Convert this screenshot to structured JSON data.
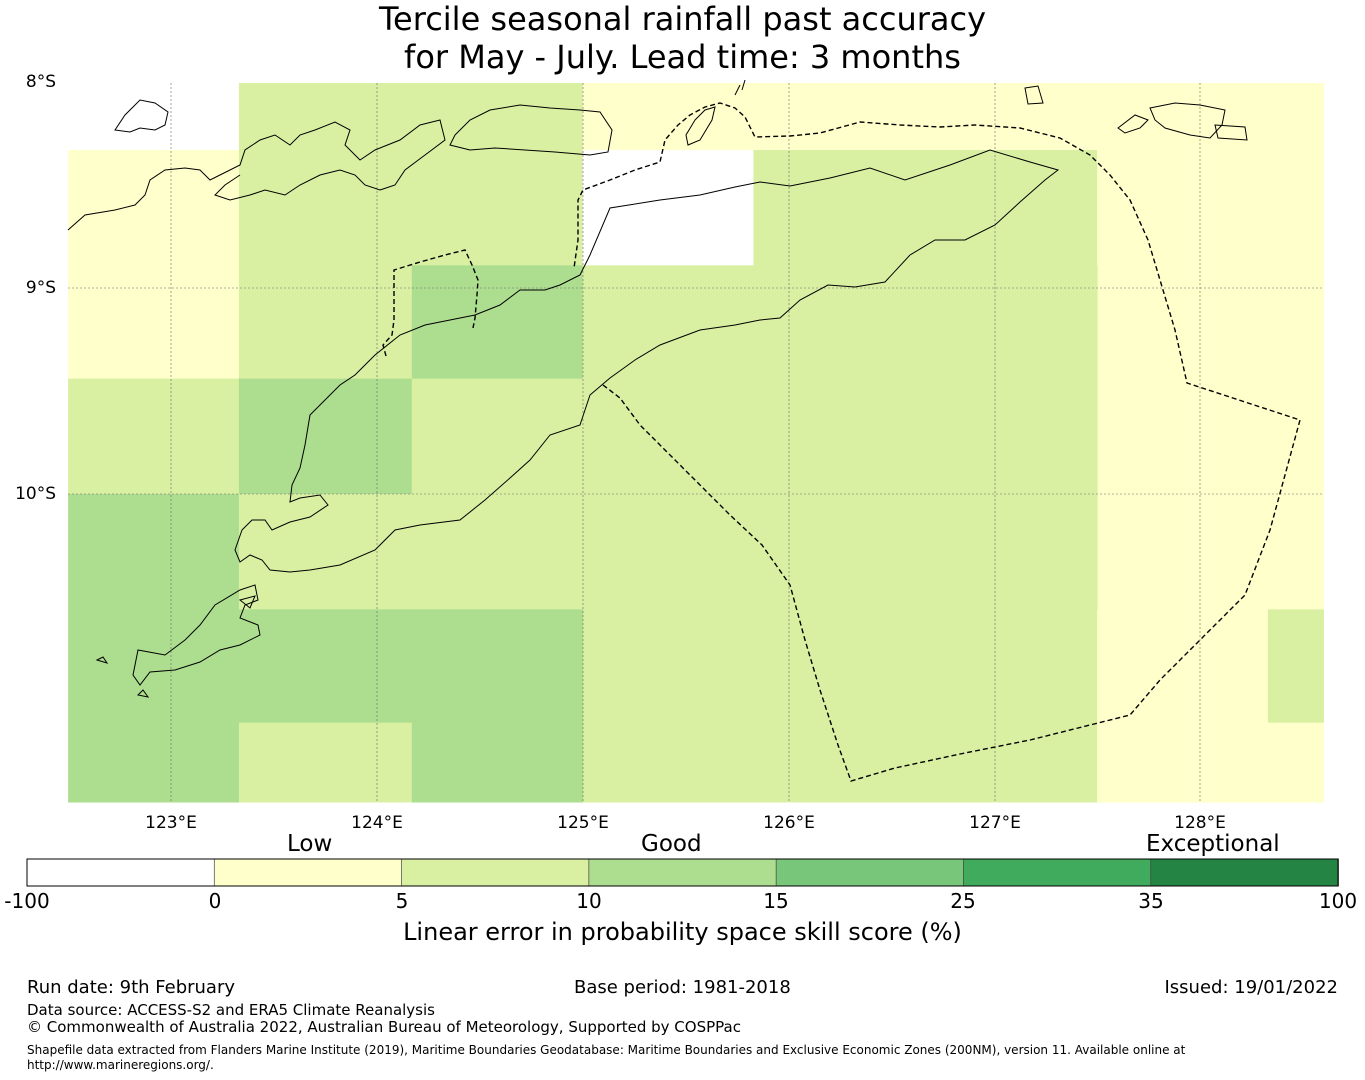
{
  "title": {
    "line1": "Tercile seasonal rainfall past accuracy",
    "line2": "for May - July. Lead time: 3 months"
  },
  "map": {
    "lat_labels": [
      "8°S",
      "9°S",
      "10°S"
    ],
    "lon_labels": [
      "123°E",
      "124°E",
      "125°E",
      "126°E",
      "127°E",
      "128°E"
    ],
    "lat_range": [
      -11.5,
      -8.0
    ],
    "lon_range": [
      122.5,
      128.6
    ],
    "cells": [
      {
        "lon0": 123.33,
        "lon1": 125.0,
        "lat0": -8.33,
        "lat1": -8.0,
        "category": "5-10"
      },
      {
        "lon0": 125.0,
        "lon1": 128.6,
        "lat0": -8.33,
        "lat1": -8.0,
        "category": "0-5"
      },
      {
        "lon0": 122.5,
        "lon1": 123.33,
        "lat0": -9.44,
        "lat1": -8.33,
        "category": "0-5"
      },
      {
        "lon0": 123.33,
        "lon1": 125.0,
        "lat0": -8.89,
        "lat1": -8.33,
        "category": "5-10"
      },
      {
        "lon0": 125.0,
        "lon1": 125.83,
        "lat0": -8.89,
        "lat1": -8.33,
        "category": "below-0"
      },
      {
        "lon0": 125.83,
        "lon1": 127.5,
        "lat0": -8.89,
        "lat1": -8.33,
        "category": "5-10"
      },
      {
        "lon0": 127.5,
        "lon1": 128.6,
        "lat0": -10.56,
        "lat1": -8.33,
        "category": "0-5"
      },
      {
        "lon0": 123.33,
        "lon1": 124.17,
        "lat0": -9.44,
        "lat1": -8.89,
        "category": "5-10"
      },
      {
        "lon0": 124.17,
        "lon1": 125.0,
        "lat0": -9.44,
        "lat1": -8.89,
        "category": "10-15"
      },
      {
        "lon0": 125.0,
        "lon1": 127.5,
        "lat0": -11.5,
        "lat1": -8.89,
        "category": "5-10"
      },
      {
        "lon0": 122.5,
        "lon1": 123.33,
        "lat0": -10.0,
        "lat1": -9.44,
        "category": "5-10"
      },
      {
        "lon0": 123.33,
        "lon1": 124.17,
        "lat0": -10.0,
        "lat1": -9.44,
        "category": "10-15"
      },
      {
        "lon0": 124.17,
        "lon1": 125.0,
        "lat0": -10.0,
        "lat1": -9.44,
        "category": "5-10"
      },
      {
        "lon0": 122.5,
        "lon1": 123.33,
        "lat0": -11.5,
        "lat1": -10.0,
        "category": "10-15"
      },
      {
        "lon0": 123.33,
        "lon1": 125.0,
        "lat0": -10.56,
        "lat1": -10.0,
        "category": "5-10"
      },
      {
        "lon0": 123.33,
        "lon1": 125.0,
        "lat0": -11.11,
        "lat1": -10.56,
        "category": "10-15"
      },
      {
        "lon0": 123.33,
        "lon1": 124.17,
        "lat0": -11.5,
        "lat1": -11.11,
        "category": "5-10"
      },
      {
        "lon0": 124.17,
        "lon1": 125.0,
        "lat0": -11.5,
        "lat1": -11.11,
        "category": "10-15"
      },
      {
        "lon0": 127.5,
        "lon1": 128.33,
        "lat0": -11.5,
        "lat1": -10.56,
        "category": "0-5"
      },
      {
        "lon0": 128.33,
        "lon1": 128.6,
        "lat0": -11.11,
        "lat1": -10.56,
        "category": "5-10"
      },
      {
        "lon0": 128.33,
        "lon1": 128.6,
        "lat0": -11.5,
        "lat1": -11.11,
        "category": "0-5"
      }
    ]
  },
  "colorbar": {
    "category_labels": [
      "Low",
      "Good",
      "Exceptional"
    ],
    "tick_labels": [
      "-100",
      "0",
      "5",
      "10",
      "15",
      "25",
      "35",
      "100"
    ],
    "bins": [
      {
        "range": "below-0",
        "color": "#ffffff"
      },
      {
        "range": "0-5",
        "color": "#ffffcc"
      },
      {
        "range": "5-10",
        "color": "#d9f0a3"
      },
      {
        "range": "10-15",
        "color": "#addd8e"
      },
      {
        "range": "15-25",
        "color": "#78c679"
      },
      {
        "range": "25-35",
        "color": "#41ab5d"
      },
      {
        "range": "35-100",
        "color": "#238443"
      }
    ],
    "title": "Linear error in probability space skill score (%)"
  },
  "footer": {
    "run_date": "Run date: 9th February",
    "base_period": "Base period: 1981-2018",
    "issued": "Issued: 19/01/2022",
    "data_source": "Data source: ACCESS-S2 and ERA5 Climate Reanalysis",
    "copyright": "© Commonwealth of Australia 2022, Australian Bureau of Meteorology, Supported by COSPPac",
    "shapefile": "Shapefile data extracted from Flanders Marine Institute (2019), Maritime Boundaries Geodatabase: Maritime Boundaries and Exclusive Economic Zones (200NM), version 11. Available online at http://www.marineregions.org/."
  }
}
